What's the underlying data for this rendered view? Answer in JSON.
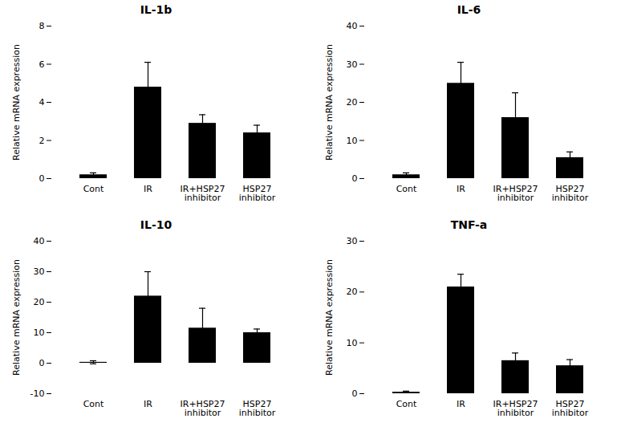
{
  "chart_data": [
    {
      "type": "bar",
      "title": "IL-1b",
      "ylabel": "Relative mRNA expression",
      "categories": [
        "Cont",
        "IR",
        "IR+HSP27\ninhibitor",
        "HSP27\ninhibitor"
      ],
      "values": [
        0.2,
        4.8,
        2.9,
        2.4
      ],
      "errors": [
        0.1,
        1.3,
        0.45,
        0.4
      ],
      "color": "#000000",
      "ylim": [
        0,
        8
      ],
      "yticks": [
        0,
        2,
        4,
        6,
        8
      ],
      "grid": false
    },
    {
      "type": "bar",
      "title": "IL-6",
      "ylabel": "Relative mRNA expression",
      "categories": [
        "Cont",
        "IR",
        "IR+HSP27\ninhibitor",
        "HSP27\ninhibitor"
      ],
      "values": [
        1.0,
        25.0,
        16.0,
        5.5
      ],
      "errors": [
        0.5,
        5.5,
        6.5,
        1.5
      ],
      "color": "#000000",
      "ylim": [
        0,
        40
      ],
      "yticks": [
        0,
        10,
        20,
        30,
        40
      ],
      "grid": false
    },
    {
      "type": "bar",
      "title": "IL-10",
      "ylabel": "Relative mRNA expression",
      "categories": [
        "Cont",
        "IR",
        "IR+HSP27\ninhibitor",
        "HSP27\ninhibitor"
      ],
      "values": [
        0.3,
        22.0,
        11.5,
        10.0
      ],
      "errors": [
        0.5,
        8.0,
        6.5,
        1.2
      ],
      "color": "#000000",
      "ylim": [
        -10,
        40
      ],
      "yticks": [
        -10,
        0,
        10,
        20,
        30,
        40
      ],
      "grid": false
    },
    {
      "type": "bar",
      "title": "TNF-a",
      "ylabel": "Relative mRNA expression",
      "categories": [
        "Cont",
        "IR",
        "IR+HSP27\ninhibitor",
        "HSP27\ninhibitor"
      ],
      "values": [
        0.3,
        21.0,
        6.5,
        5.5
      ],
      "errors": [
        0.2,
        2.5,
        1.5,
        1.2
      ],
      "color": "#000000",
      "ylim": [
        0,
        30
      ],
      "yticks": [
        0,
        10,
        20,
        30
      ],
      "grid": false
    }
  ]
}
